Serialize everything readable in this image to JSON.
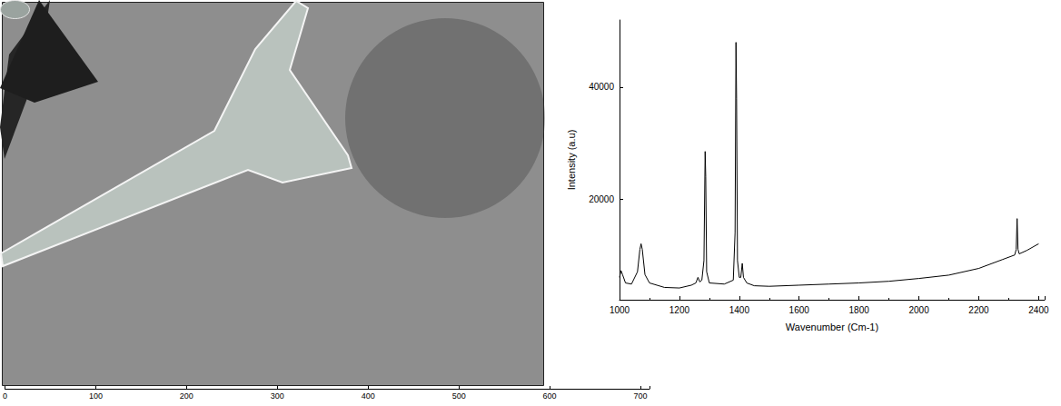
{
  "chart_data": [
    {
      "type": "image",
      "xlim": [
        0,
        710
      ],
      "xticks": [
        0,
        100,
        200,
        300,
        400,
        500,
        600,
        700
      ]
    },
    {
      "type": "line",
      "x_label": "Wavenumber (Cm-1)",
      "y_label": "Intensity (a.u)",
      "color": "#000000",
      "xlim": [
        1000,
        2420
      ],
      "xticks": [
        1000,
        1200,
        1400,
        1600,
        1800,
        2000,
        2200,
        2400
      ],
      "ylim": [
        2000,
        52000
      ],
      "yticks": [
        20000,
        40000
      ],
      "x": [
        1000,
        1005,
        1010,
        1020,
        1040,
        1060,
        1068,
        1072,
        1076,
        1085,
        1100,
        1150,
        1200,
        1240,
        1255,
        1262,
        1268,
        1275,
        1282,
        1286,
        1288,
        1291,
        1300,
        1350,
        1380,
        1386,
        1389,
        1391,
        1394,
        1400,
        1405,
        1410,
        1414,
        1425,
        1450,
        1500,
        1600,
        1700,
        1800,
        1900,
        2000,
        2100,
        2200,
        2280,
        2320,
        2325,
        2328,
        2331,
        2335,
        2360,
        2400
      ],
      "values": [
        6000,
        7200,
        6500,
        5000,
        4800,
        7000,
        11000,
        12000,
        11000,
        6500,
        5000,
        4200,
        4100,
        4600,
        5000,
        6000,
        5200,
        5500,
        9000,
        28500,
        24000,
        7000,
        5000,
        4800,
        5500,
        14000,
        48000,
        38000,
        9000,
        6000,
        6000,
        8500,
        6000,
        5000,
        4500,
        4400,
        4600,
        4800,
        5000,
        5300,
        5800,
        6400,
        7600,
        9200,
        10000,
        11000,
        16500,
        11000,
        10200,
        10800,
        12000
      ]
    }
  ]
}
